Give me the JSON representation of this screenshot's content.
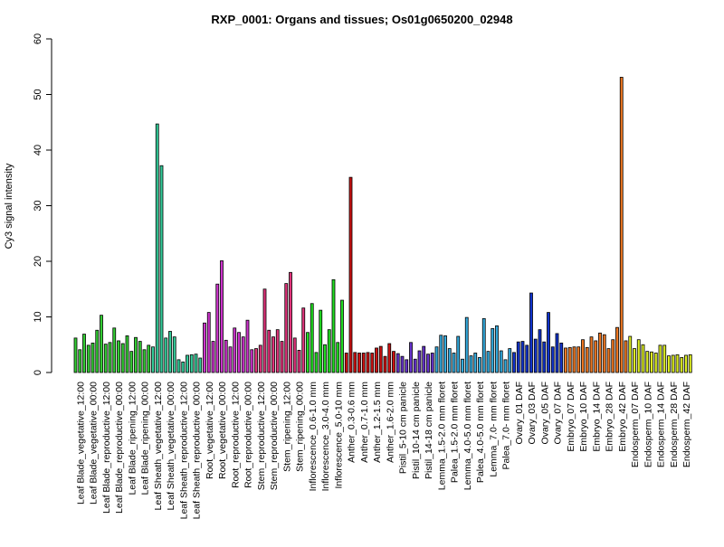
{
  "chart_data": {
    "type": "bar",
    "title": "RXP_0001: Organs and tissues; Os01g0650200_02948",
    "ylabel": "Cy3 signal intensity",
    "xlabel": "",
    "ylim": [
      0,
      60
    ],
    "yticks": [
      0,
      10,
      20,
      30,
      40,
      50,
      60
    ],
    "grid": false,
    "x_tick_labels": [
      "Leaf Blade_vegetative_12:00",
      "Leaf Blade_vegetative_00:00",
      "Leaf Blade_reproductive_12:00",
      "Leaf Blade_reproductive_00:00",
      "Leaf Blade_ripening_12:00",
      "Leaf Blade_ripening_00:00",
      "Leaf Sheath_vegetative_12:00",
      "Leaf Sheath_vegetative_00:00",
      "Leaf Sheath_reproductive_12:00",
      "Leaf Sheath_reproductive_00:00",
      "Root_vegetative_12:00",
      "Root_vegetative_00:00",
      "Root_reproductive_12:00",
      "Root_reproductive_00:00",
      "Stem_reproductive_12:00",
      "Stem_reproductive_00:00",
      "Stem_ripening_12:00",
      "Stem_ripening_00:00",
      "Inflorescence_0.6-1.0 mm",
      "Inflorescence_3.0-4.0 mm",
      "Inflorescence_5.0-10 mm",
      "Anther_0.3-0.6 mm",
      "Anther_0.7-1.0 mm",
      "Anther_1.2-1.5 mm",
      "Anther_1.6-2.0 mm",
      "Pistil_5-10 cm panicle",
      "Pistil_10-14 cm panicle",
      "Pistil_14-18 cm panicle",
      "Lemma_1.5-2.0 mm floret",
      "Palea_1.5-2.0 mm floret",
      "Lemma_4.0-5.0 mm floret",
      "Palea_4.0-5.0 mm floret",
      "Lemma_7.0- mm floret",
      "Palea_7.0- mm floret",
      "Ovary_01 DAF",
      "Ovary_03 DAF",
      "Ovary_05 DAF",
      "Ovary_07 DAF",
      "Embryo_07 DAF",
      "Embryo_10 DAF",
      "Embryo_14 DAF",
      "Embryo_28 DAF",
      "Embryo_42 DAF",
      "Endosperm_07 DAF",
      "Endosperm_10 DAF",
      "Endosperm_14 DAF",
      "Endosperm_28 DAF",
      "Endosperm_42 DAF"
    ],
    "groups": [
      {
        "label": "Leaf Blade_vegetative_12:00",
        "color": "#33CC33",
        "values": [
          6.2,
          4.1,
          6.9
        ]
      },
      {
        "label": "Leaf Blade_vegetative_00:00",
        "color": "#33CC33",
        "values": [
          4.9,
          5.3,
          7.6
        ]
      },
      {
        "label": "Leaf Blade_reproductive_12:00",
        "color": "#33CC33",
        "values": [
          10.3,
          5.1,
          5.4
        ]
      },
      {
        "label": "Leaf Blade_reproductive_00:00",
        "color": "#33CC33",
        "values": [
          8.0,
          5.7,
          5.2
        ]
      },
      {
        "label": "Leaf Blade_ripening_12:00",
        "color": "#33CC33",
        "values": [
          6.6,
          3.8,
          6.3
        ]
      },
      {
        "label": "Leaf Blade_ripening_00:00",
        "color": "#33CC33",
        "values": [
          5.6,
          4.1,
          4.9
        ]
      },
      {
        "label": "Leaf Sheath_vegetative_12:00",
        "color": "#33CC99",
        "values": [
          4.6,
          44.7,
          37.2
        ]
      },
      {
        "label": "Leaf Sheath_vegetative_00:00",
        "color": "#33CC99",
        "values": [
          6.2,
          7.4,
          6.4
        ]
      },
      {
        "label": "Leaf Sheath_reproductive_12:00",
        "color": "#33CC99",
        "values": [
          2.3,
          1.9,
          3.1
        ]
      },
      {
        "label": "Leaf Sheath_reproductive_00:00",
        "color": "#33CC99",
        "values": [
          3.2,
          3.3,
          2.6
        ]
      },
      {
        "label": "Root_vegetative_12:00",
        "color": "#CC33CC",
        "values": [
          8.9,
          10.8,
          5.6
        ]
      },
      {
        "label": "Root_vegetative_00:00",
        "color": "#CC33CC",
        "values": [
          15.9,
          20.1,
          5.8
        ]
      },
      {
        "label": "Root_reproductive_12:00",
        "color": "#CC33CC",
        "values": [
          4.6,
          8.0,
          7.2
        ]
      },
      {
        "label": "Root_reproductive_00:00",
        "color": "#CC33CC",
        "values": [
          6.4,
          9.4,
          4.1
        ]
      },
      {
        "label": "Stem_reproductive_12:00",
        "color": "#E0337A",
        "values": [
          4.3,
          4.9,
          15.0
        ]
      },
      {
        "label": "Stem_reproductive_00:00",
        "color": "#E0337A",
        "values": [
          7.6,
          6.4,
          7.7
        ]
      },
      {
        "label": "Stem_ripening_12:00",
        "color": "#E0337A",
        "values": [
          5.6,
          16.0,
          18.0
        ]
      },
      {
        "label": "Stem_ripening_00:00",
        "color": "#E0337A",
        "values": [
          6.2,
          4.0,
          11.6
        ]
      },
      {
        "label": "Inflorescence_0.6-1.0 mm",
        "color": "#22DD22",
        "values": [
          7.2,
          12.4,
          3.6
        ]
      },
      {
        "label": "Inflorescence_3.0-4.0 mm",
        "color": "#22DD22",
        "values": [
          11.2,
          5.0,
          7.7
        ]
      },
      {
        "label": "Inflorescence_5.0-10 mm",
        "color": "#22DD22",
        "values": [
          16.7,
          5.4,
          13.0
        ]
      },
      {
        "label": "Anther_0.3-0.6 mm",
        "color": "#CC1111",
        "values": [
          3.5,
          35.1,
          3.6
        ]
      },
      {
        "label": "Anther_0.7-1.0 mm",
        "color": "#CC1111",
        "values": [
          3.5,
          3.5,
          3.6
        ]
      },
      {
        "label": "Anther_1.2-1.5 mm",
        "color": "#CC1111",
        "values": [
          3.5,
          4.4,
          4.7
        ]
      },
      {
        "label": "Anther_1.6-2.0 mm",
        "color": "#CC1111",
        "values": [
          2.9,
          5.2,
          3.8
        ]
      },
      {
        "label": "Pistil_5-10 cm panicle",
        "color": "#6633CC",
        "values": [
          3.4,
          2.9,
          2.3
        ]
      },
      {
        "label": "Pistil_10-14 cm panicle",
        "color": "#6633CC",
        "values": [
          5.4,
          2.4,
          3.9
        ]
      },
      {
        "label": "Pistil_14-18 cm panicle",
        "color": "#6633CC",
        "values": [
          4.7,
          3.3,
          3.5
        ]
      },
      {
        "label": "Lemma_1.5-2.0 mm floret",
        "color": "#33AADD",
        "values": [
          4.6,
          6.7,
          6.6
        ]
      },
      {
        "label": "Palea_1.5-2.0 mm floret",
        "color": "#33AADD",
        "values": [
          4.3,
          3.5,
          6.5
        ]
      },
      {
        "label": "Lemma_4.0-5.0 mm floret",
        "color": "#33AADD",
        "values": [
          2.4,
          9.9,
          3.0
        ]
      },
      {
        "label": "Palea_4.0-5.0 mm floret",
        "color": "#33AADD",
        "values": [
          3.5,
          2.7,
          9.7
        ]
      },
      {
        "label": "Lemma_7.0- mm floret",
        "color": "#33AADD",
        "values": [
          3.8,
          7.9,
          8.4
        ]
      },
      {
        "label": "Palea_7.0- mm floret",
        "color": "#33AADD",
        "values": [
          3.9,
          2.3,
          4.3
        ]
      },
      {
        "label": "Ovary_01 DAF",
        "color": "#1133CC",
        "values": [
          3.6,
          5.5,
          5.6
        ]
      },
      {
        "label": "Ovary_03 DAF",
        "color": "#1133CC",
        "values": [
          4.9,
          14.3,
          6.0
        ]
      },
      {
        "label": "Ovary_05 DAF",
        "color": "#1133CC",
        "values": [
          7.7,
          5.5,
          10.8
        ]
      },
      {
        "label": "Ovary_07 DAF",
        "color": "#1133CC",
        "values": [
          4.6,
          7.0,
          5.3
        ]
      },
      {
        "label": "Embryo_07 DAF",
        "color": "#EE7722",
        "values": [
          4.4,
          4.5,
          4.6
        ]
      },
      {
        "label": "Embryo_10 DAF",
        "color": "#EE7722",
        "values": [
          4.6,
          5.9,
          4.5
        ]
      },
      {
        "label": "Embryo_14 DAF",
        "color": "#EE7722",
        "values": [
          6.4,
          5.7,
          7.1
        ]
      },
      {
        "label": "Embryo_28 DAF",
        "color": "#EE7722",
        "values": [
          6.8,
          4.3,
          5.9
        ]
      },
      {
        "label": "Embryo_42 DAF",
        "color": "#EE7722",
        "values": [
          8.1,
          53.1,
          5.7
        ]
      },
      {
        "label": "Endosperm_07 DAF",
        "color": "#DDEE22",
        "values": [
          6.5,
          4.3,
          5.9
        ]
      },
      {
        "label": "Endosperm_10 DAF",
        "color": "#DDEE22",
        "values": [
          5.0,
          3.8,
          3.7
        ]
      },
      {
        "label": "Endosperm_14 DAF",
        "color": "#DDEE22",
        "values": [
          3.5,
          4.9,
          4.9
        ]
      },
      {
        "label": "Endosperm_28 DAF",
        "color": "#DDEE22",
        "values": [
          3.0,
          3.1,
          3.2
        ]
      },
      {
        "label": "Endosperm_42 DAF",
        "color": "#DDEE22",
        "values": [
          2.7,
          3.1,
          3.2
        ]
      }
    ]
  }
}
